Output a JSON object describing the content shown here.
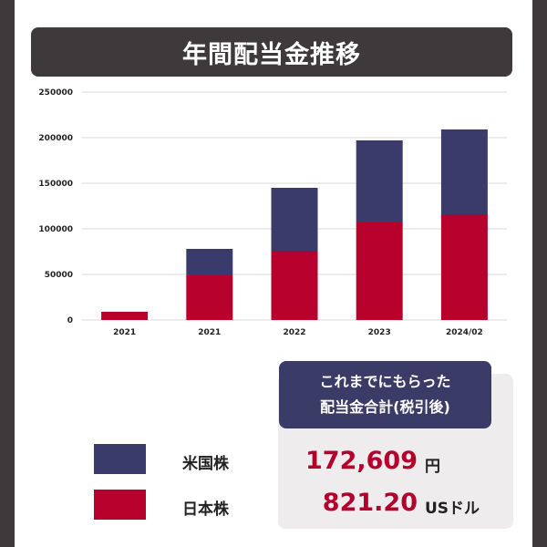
{
  "title": "年間配当金推移",
  "colors": {
    "us": "#3b3b6b",
    "jp": "#b8002d",
    "frame": "#3e3a3c",
    "amount": "#b3002d"
  },
  "chart_data": {
    "type": "bar",
    "stacked": true,
    "categories": [
      "2021",
      "2021",
      "2022",
      "2023",
      "2024/02"
    ],
    "series": [
      {
        "name": "日本株",
        "color": "#b8002d",
        "values": [
          9000,
          49000,
          76000,
          107000,
          116000
        ]
      },
      {
        "name": "米国株",
        "color": "#3b3b6b",
        "values": [
          0,
          29000,
          69000,
          90000,
          93000
        ]
      }
    ],
    "yticks": [
      "0",
      "50000",
      "100000",
      "150000",
      "200000",
      "250000"
    ],
    "ylim": [
      0,
      250000
    ],
    "grid": true
  },
  "legend": [
    {
      "label": "米国株",
      "color": "#3b3b6b"
    },
    {
      "label": "日本株",
      "color": "#b8002d"
    }
  ],
  "summary": {
    "heading_line1": "これまでにもらった",
    "heading_line2": "配当金合計(税引後)",
    "yen_amount": "172,609",
    "yen_unit": "円",
    "usd_amount": "821.20",
    "usd_unit": "USドル"
  }
}
